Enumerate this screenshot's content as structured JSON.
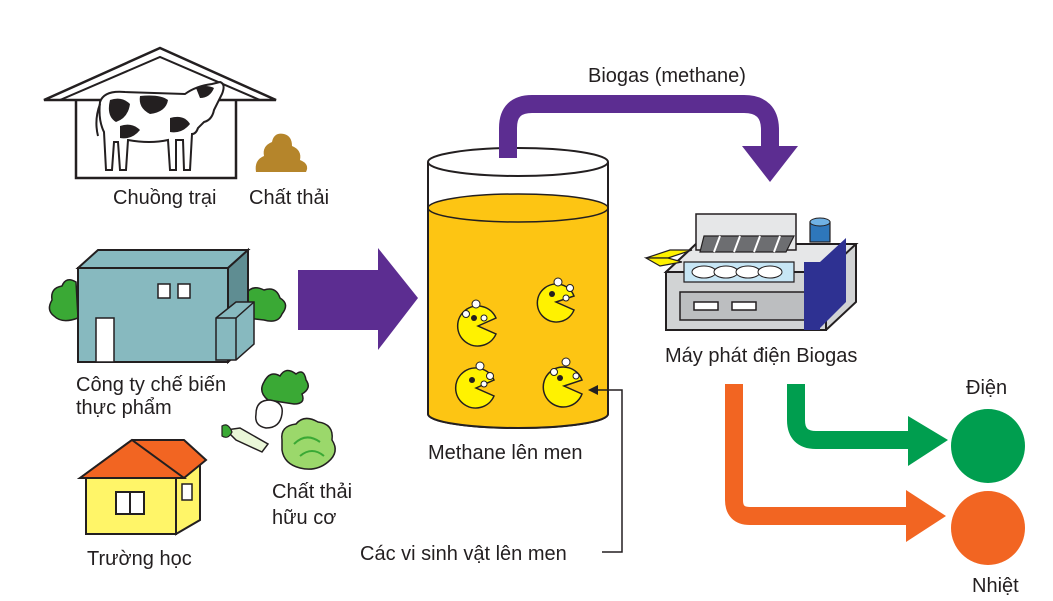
{
  "labels": {
    "farm": "Chuồng trại",
    "manure": "Chất thải",
    "factory_line1": "Công ty chế biến",
    "factory_line2": "thực phẩm",
    "organic_waste_line1": "Chất thải",
    "organic_waste_line2": "hữu cơ",
    "school": "Trường học",
    "biogas": "Biogas (methane)",
    "tank": "Methane lên men",
    "generator": "Máy phát điện Biogas",
    "microbes": "Các vi sinh vật lên men",
    "electricity": "Điện",
    "heat": "Nhiệt"
  },
  "colors": {
    "arrow_purple": "#5c2d91",
    "liquid_yellow": "#fdc513",
    "microbe_yellow": "#fff200",
    "electricity_green": "#009e4f",
    "heat_orange": "#f26522",
    "building_teal": "#87b9bf",
    "school_red": "#f26522",
    "school_yellow": "#fff568",
    "tree_green": "#3aa935",
    "manure_brown": "#b5852b",
    "generator_blue": "#2e3192"
  }
}
